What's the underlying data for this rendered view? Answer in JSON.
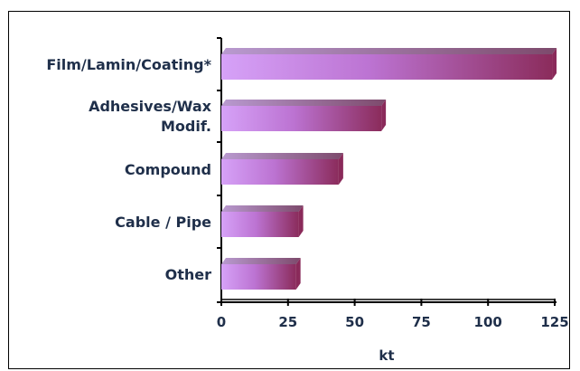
{
  "chart_data": {
    "type": "bar",
    "orientation": "horizontal",
    "categories": [
      "Film/Lamin/Coating*",
      "Adhesives/Wax Modif.",
      "Compound",
      "Cable / Pipe",
      "Other"
    ],
    "category_lines": [
      [
        "Film/Lamin/Coating*"
      ],
      [
        "Adhesives/Wax",
        "Modif."
      ],
      [
        "Compound"
      ],
      [
        "Cable / Pipe"
      ],
      [
        "Other"
      ]
    ],
    "values": [
      124,
      60,
      44,
      29,
      28
    ],
    "xlabel": "kt",
    "ylabel": "",
    "xlim": [
      0,
      125
    ],
    "xticks": [
      0,
      25,
      50,
      75,
      100,
      125
    ],
    "grid": false,
    "three_d": true,
    "colors": {
      "bar_light": "#d49cf6",
      "bar_mid": "#bb6fcf",
      "bar_dark": "#8a2a5a",
      "bar_top": "#a46a92",
      "axis": "#000000",
      "text": "#1f2f4a"
    }
  }
}
